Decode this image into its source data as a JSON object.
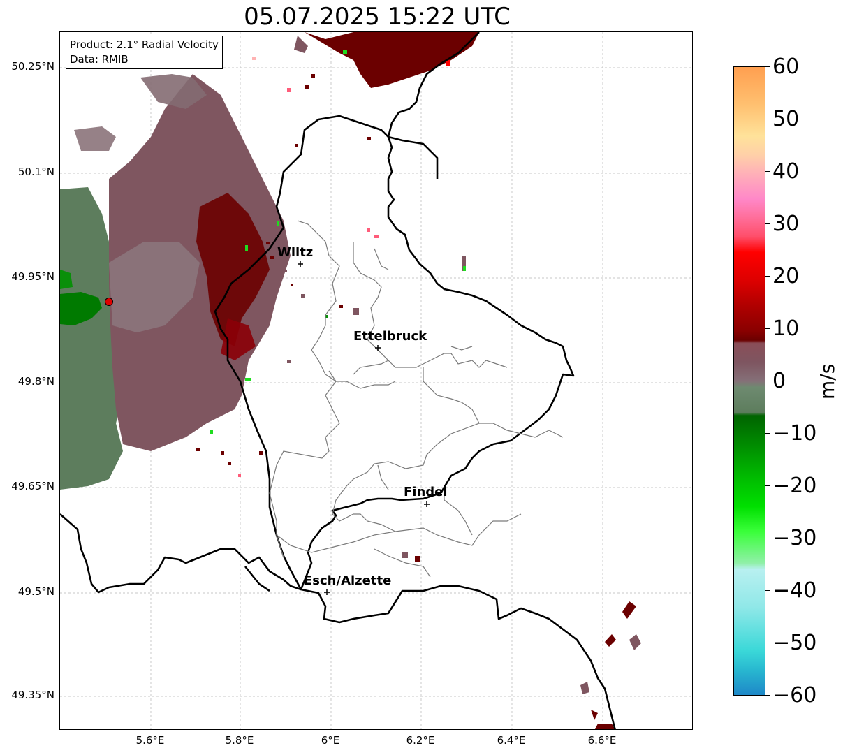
{
  "title": "05.07.2025 15:22 UTC",
  "info_box": {
    "product": "Product: 2.1° Radial Velocity",
    "data_source": "Data: RMIB"
  },
  "axes": {
    "lat_ticks": [
      "50.25°N",
      "50.1°N",
      "49.95°N",
      "49.8°N",
      "49.65°N",
      "49.5°N",
      "49.35°N"
    ],
    "lon_ticks": [
      "5.6°E",
      "5.8°E",
      "6°E",
      "6.2°E",
      "6.4°E",
      "6.6°E"
    ]
  },
  "cities": [
    {
      "name": "Wiltz"
    },
    {
      "name": "Ettelbruck"
    },
    {
      "name": "Findel"
    },
    {
      "name": "Esch/Alzette"
    }
  ],
  "colorbar": {
    "unit": "m/s",
    "min": -60,
    "max": 60,
    "ticks": [
      "60",
      "50",
      "40",
      "30",
      "20",
      "10",
      "0",
      "−10",
      "−20",
      "−30",
      "−40",
      "−50",
      "−60"
    ]
  },
  "colors": {
    "outgoing_dark": "#6b0000",
    "outgoing_muted": "#7e4d55",
    "near_zero": "#846b72",
    "incoming_gray_green": "#5d7d5d",
    "incoming_green": "#007a00",
    "bright_green": "#1fdc1f",
    "pink": "#ff5c7a",
    "radar_site": "#e00000"
  }
}
